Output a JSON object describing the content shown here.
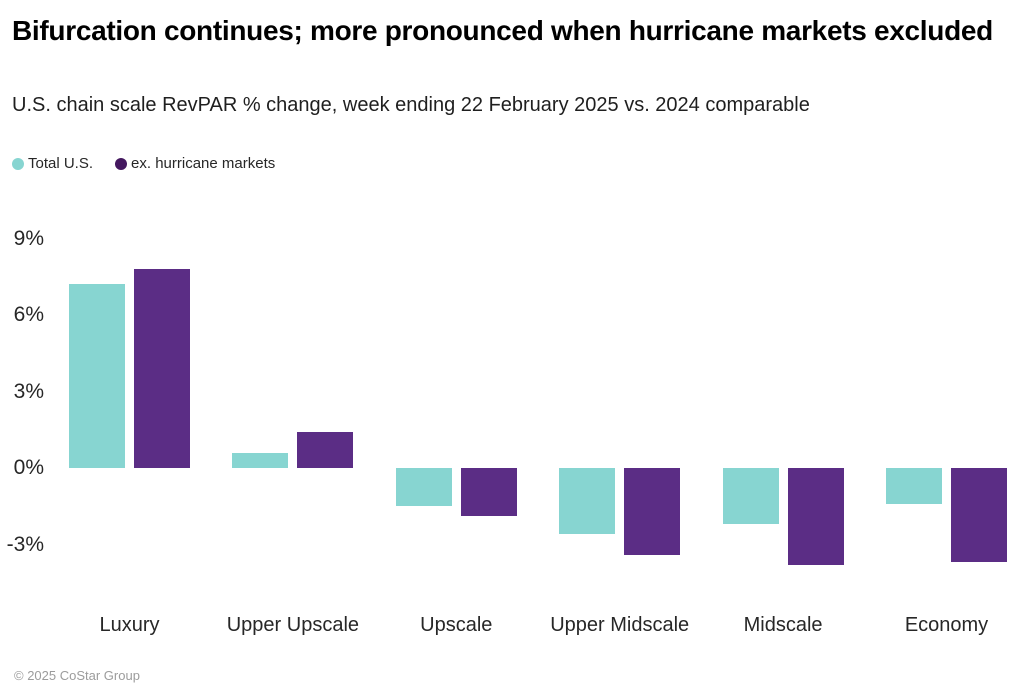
{
  "header": {
    "title": "Bifurcation continues; more pronounced when hurricane markets excluded",
    "subtitle": "U.S. chain scale RevPAR % change, week ending 22 February 2025 vs. 2024 comparable"
  },
  "legend": {
    "items": [
      {
        "label": "Total U.S.",
        "marker_color": "#87d5d1"
      },
      {
        "label": "ex. hurricane markets",
        "marker_color": "#44185f"
      }
    ]
  },
  "footer": {
    "copyright": "© 2025 CoStar Group"
  },
  "colors": {
    "teal_bar": "#87d5d1",
    "purple_bar": "#5b2d85",
    "title_text": "#000000",
    "body_text": "#272727",
    "muted_text": "#9c9c9c"
  },
  "chart_data": {
    "type": "bar",
    "title": "Bifurcation continues; more pronounced when hurricane markets excluded",
    "subtitle": "U.S. chain scale RevPAR % change, week ending 22 February 2025 vs. 2024 comparable",
    "categories": [
      "Luxury",
      "Upper Upscale",
      "Upscale",
      "Upper Midscale",
      "Midscale",
      "Economy"
    ],
    "series": [
      {
        "name": "Total U.S.",
        "color": "#87d5d1",
        "values": [
          7.2,
          0.6,
          -1.5,
          -2.6,
          -2.2,
          -1.4
        ]
      },
      {
        "name": "ex. hurricane markets",
        "color": "#5b2d85",
        "values": [
          7.8,
          1.4,
          -1.9,
          -3.4,
          -3.8,
          -3.7
        ]
      }
    ],
    "units": "%",
    "xlabel": "",
    "ylabel": "",
    "y_ticks": [
      {
        "value": 9,
        "label": "9%"
      },
      {
        "value": 6,
        "label": "6%"
      },
      {
        "value": 3,
        "label": "3%"
      },
      {
        "value": 0,
        "label": "0%"
      },
      {
        "value": -3,
        "label": "-3%"
      }
    ],
    "ylim": [
      -4.6,
      9.8
    ],
    "grid": false,
    "legend_position": "top-left"
  }
}
